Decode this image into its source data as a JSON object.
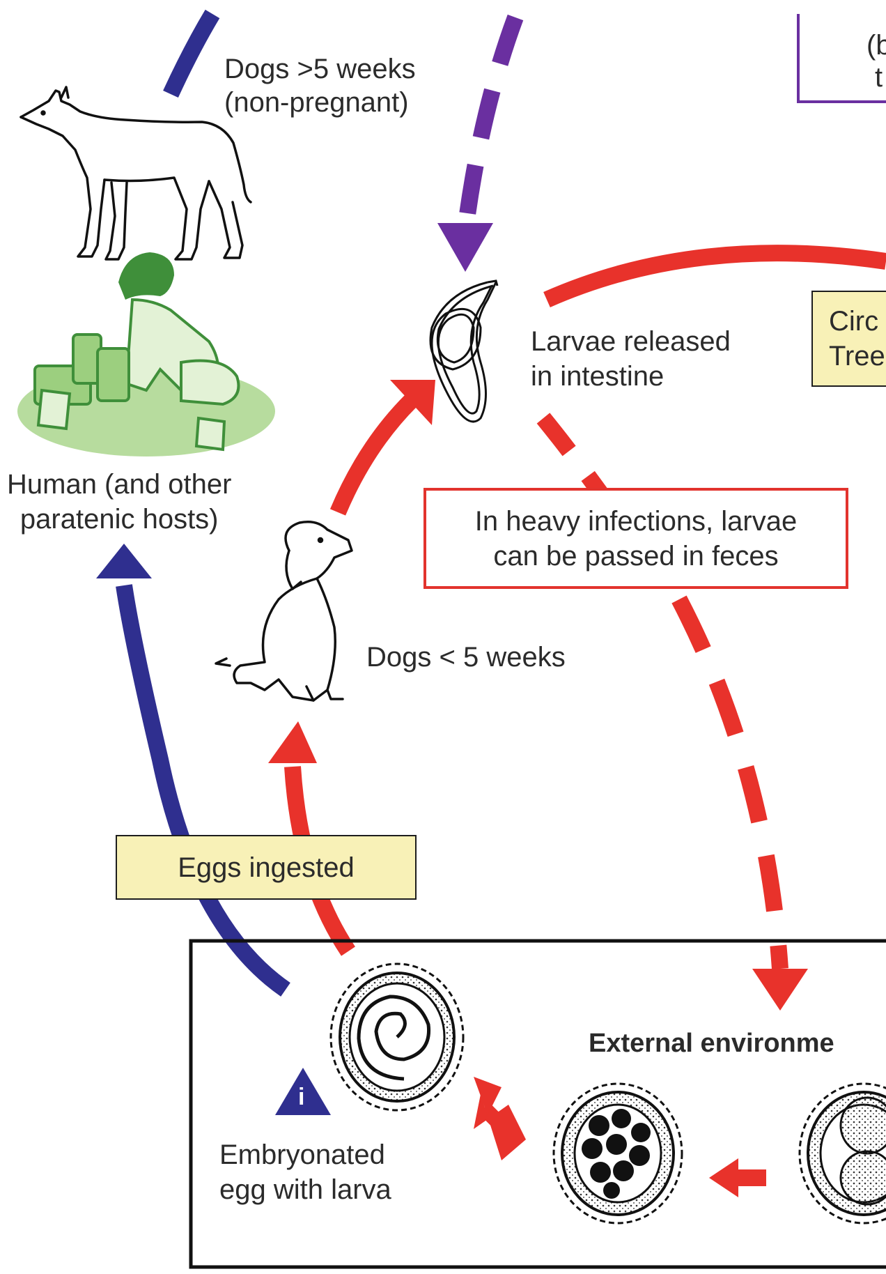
{
  "labels": {
    "dogs_older": [
      "Dogs >5 weeks",
      "(non-pregnant)"
    ],
    "larvae_released": [
      "Larvae released",
      "in intestine"
    ],
    "human_hosts": [
      "Human (and other",
      "paratenic hosts)"
    ],
    "heavy_infections": [
      "In heavy infections, larvae",
      "can be passed in feces"
    ],
    "dogs_young": "Dogs < 5 weeks",
    "eggs_ingested": "Eggs ingested",
    "external_environment": "External environme",
    "embryonated_egg": [
      "Embryonated",
      "egg with larva"
    ],
    "circ_box": [
      "Circ",
      "Tree"
    ],
    "top_right_fragments": [
      "(b",
      "t"
    ],
    "info_marker": "i"
  },
  "colors": {
    "blue_arrow": "#2f2f8f",
    "purple_arrow": "#6a2fa0",
    "red_arrow": "#e8322b",
    "yellow_box": "#f8f1b7",
    "green_human": "#3f8f3a",
    "light_green": "#b7dc9e"
  }
}
